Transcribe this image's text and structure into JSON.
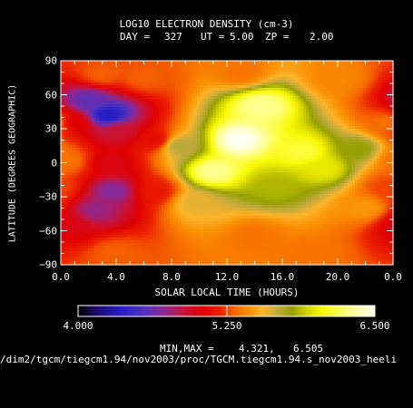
{
  "chart_data": {
    "type": "heatmap",
    "title": "LOG10 ELECTRON DENSITY (cm-3)",
    "subtitle": {
      "day_label": "DAY =",
      "day": "327",
      "ut_label": "UT =",
      "ut": "5.00",
      "zp_label": "ZP =",
      "zp": "2.00"
    },
    "xlabel": "SOLAR LOCAL TIME (HOURS)",
    "ylabel": "LATITUDE (DEGREES GEOGRAPHIC)",
    "xlim": [
      0,
      24
    ],
    "ylim": [
      -90,
      90
    ],
    "x_ticks": [
      "0.0",
      "4.0",
      "8.0",
      "12.0",
      "16.0",
      "20.0",
      "0.0"
    ],
    "y_ticks": [
      "90",
      "60",
      "30",
      "0",
      "−30",
      "−60",
      "−90"
    ],
    "colorbar": {
      "min_label": "4.000",
      "mid_label": "5.250",
      "max_label": "6.500",
      "range": [
        4.0,
        6.5
      ]
    },
    "minmax_label": "MIN,MAX =",
    "min_value": "4.321,",
    "max_value": "6.505",
    "file_path": "/dim2/tgcm/tiegcm1.94/nov2003/proc/TGCM.tiegcm1.94.s_nov2003_heeli",
    "field_features": [
      {
        "x": 12.9,
        "y": 20,
        "value": 6.5
      },
      {
        "x": 11.0,
        "y": -8,
        "value": 6.3
      },
      {
        "x": 14.5,
        "y": 50,
        "value": 6.3
      },
      {
        "x": 17.5,
        "y": 10,
        "value": 6.15
      },
      {
        "x": 19.0,
        "y": -5,
        "value": 6.0
      },
      {
        "x": 15.5,
        "y": -22,
        "value": 5.85
      },
      {
        "x": 21.5,
        "y": 12,
        "value": 5.8
      },
      {
        "x": 8.5,
        "y": 15,
        "value": 5.7
      },
      {
        "x": 9.8,
        "y": -35,
        "value": 5.6
      },
      {
        "x": 3.4,
        "y": 42,
        "value": 4.32
      },
      {
        "x": 2.0,
        "y": 55,
        "value": 4.6
      },
      {
        "x": 4.2,
        "y": 28,
        "value": 4.9
      },
      {
        "x": 3.8,
        "y": -25,
        "value": 4.7
      },
      {
        "x": 2.5,
        "y": -42,
        "value": 4.75
      },
      {
        "x": 3.6,
        "y": 0,
        "value": 5.0
      },
      {
        "x": 1.0,
        "y": 35,
        "value": 5.05
      },
      {
        "x": 0.6,
        "y": -55,
        "value": 5.0
      },
      {
        "x": 6.8,
        "y": 20,
        "value": 5.1
      },
      {
        "x": 6.8,
        "y": -25,
        "value": 5.15
      },
      {
        "x": 0.4,
        "y": 2,
        "value": 5.35
      },
      {
        "x": 23.6,
        "y": -22,
        "value": 5.25
      },
      {
        "x": 23.6,
        "y": 35,
        "value": 5.35
      },
      {
        "x": 22.0,
        "y": -40,
        "value": 5.45
      },
      {
        "x": 14.0,
        "y": -65,
        "value": 5.35
      },
      {
        "x": 6.0,
        "y": 75,
        "value": 5.3
      },
      {
        "x": 13.0,
        "y": 80,
        "value": 5.35
      },
      {
        "x": 3.0,
        "y": 78,
        "value": 5.3
      },
      {
        "x": 20.0,
        "y": 75,
        "value": 5.4
      },
      {
        "x": 4.0,
        "y": -80,
        "value": 5.3
      },
      {
        "x": 18.0,
        "y": -82,
        "value": 5.35
      }
    ]
  }
}
